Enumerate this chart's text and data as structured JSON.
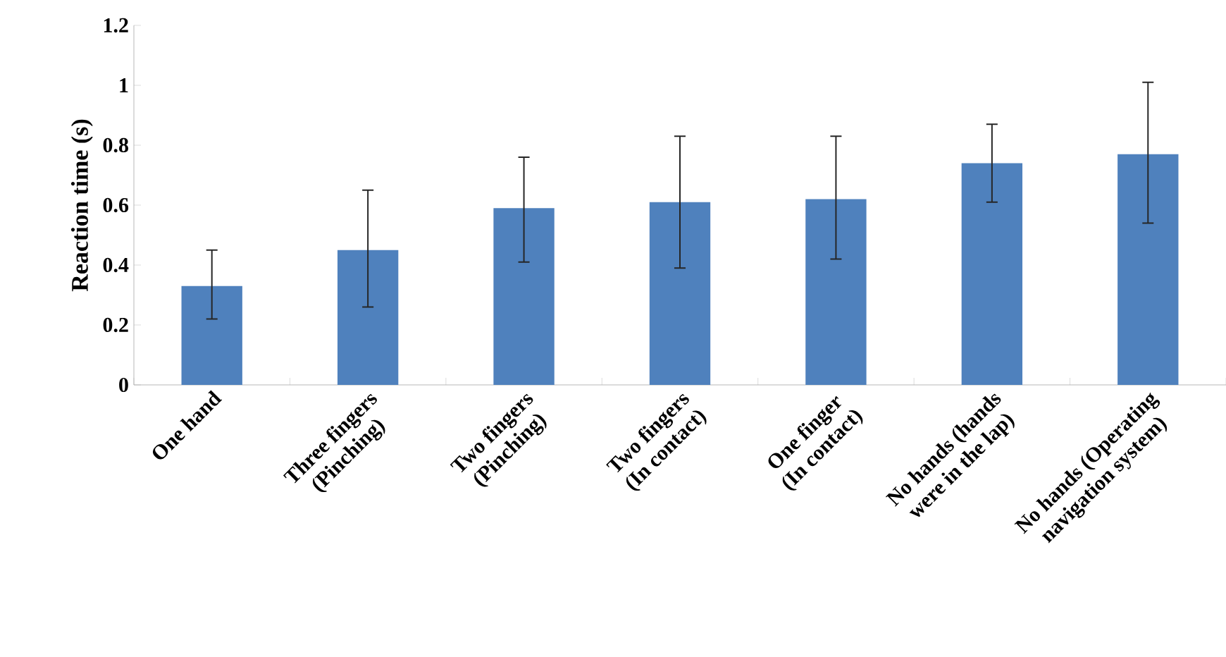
{
  "chart_data": {
    "type": "bar",
    "ylabel": "Reaction time (s)",
    "categories": [
      "One hand",
      "Three fingers\n(Pinching)",
      "Two fingers\n(Pinching)",
      "Two fingers\n(In contact)",
      "One finger\n(In contact)",
      "No hands (hands\nwere in the lap)",
      "No hands (Operating\nnavigation system)"
    ],
    "values": [
      0.33,
      0.45,
      0.59,
      0.61,
      0.62,
      0.74,
      0.77
    ],
    "errors": [
      [
        0.22,
        0.45
      ],
      [
        0.26,
        0.65
      ],
      [
        0.41,
        0.76
      ],
      [
        0.39,
        0.83
      ],
      [
        0.42,
        0.83
      ],
      [
        0.61,
        0.87
      ],
      [
        0.54,
        1.01
      ]
    ],
    "color": "#4f81bd",
    "ylim": [
      0,
      1.2
    ],
    "yticks": [
      0,
      0.2,
      0.4,
      0.6,
      0.8,
      1,
      1.2
    ],
    "grid": false
  }
}
